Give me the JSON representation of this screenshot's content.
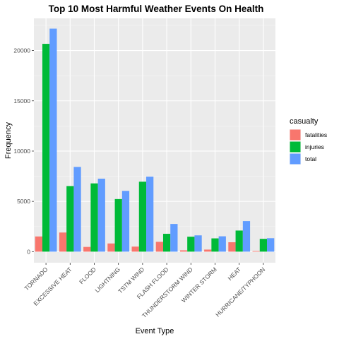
{
  "chart_data": {
    "type": "bar",
    "title": "Top 10 Most Harmful Weather Events On Health",
    "xlabel": "Event Type",
    "ylabel": "Frequency",
    "ylim": [
      -1100,
      23200
    ],
    "yticks": [
      0,
      5000,
      10000,
      15000,
      20000
    ],
    "grid": true,
    "legend_position": "right",
    "legend_title": "casualty",
    "categories": [
      "TORNADO",
      "EXCESSIVE HEAT",
      "FLOOD",
      "LIGHTNING",
      "TSTM WIND",
      "FLASH FLOOD",
      "THUNDERSTORM WIND",
      "WINTER STORM",
      "HEAT",
      "HURRICANE/TYPHOON"
    ],
    "series": [
      {
        "name": "fatalities",
        "color": "#F8766D",
        "values": [
          1511,
          1903,
          470,
          816,
          504,
          978,
          133,
          206,
          937,
          64
        ]
      },
      {
        "name": "injuries",
        "color": "#00BA38",
        "values": [
          20667,
          6525,
          6789,
          5230,
          6957,
          1777,
          1488,
          1321,
          2100,
          1275
        ]
      },
      {
        "name": "total",
        "color": "#619CFF",
        "values": [
          22178,
          8428,
          7259,
          6046,
          7461,
          2755,
          1621,
          1527,
          3037,
          1339
        ]
      }
    ]
  }
}
